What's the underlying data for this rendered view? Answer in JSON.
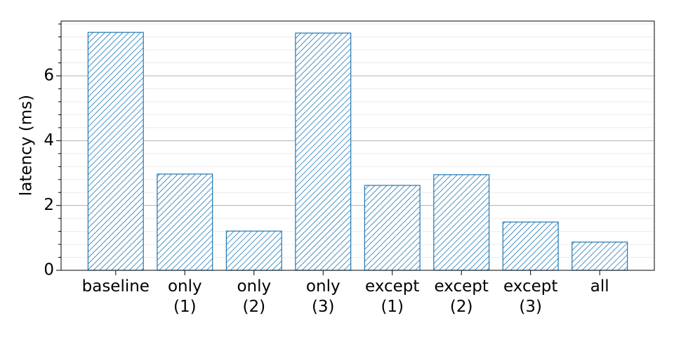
{
  "chart_data": {
    "type": "bar",
    "y_label": "latency (ms)",
    "categories": [
      "baseline",
      "only\n(1)",
      "only\n(2)",
      "only\n(3)",
      "except\n(1)",
      "except\n(2)",
      "except\n(3)",
      "all"
    ],
    "values": [
      7.34,
      2.97,
      1.21,
      7.32,
      2.62,
      2.95,
      1.49,
      0.87
    ],
    "color": "#1f77b4",
    "hatch": "////",
    "ylim": [
      0,
      7.69
    ],
    "yticks": [
      0,
      2,
      4,
      6
    ],
    "minor_yticks": [
      0.4,
      0.8,
      1.2,
      1.6,
      2.4,
      2.8,
      3.2,
      3.6,
      4.4,
      4.8,
      5.2,
      5.6,
      6.4,
      6.8,
      7.2,
      7.6
    ],
    "grid": true
  }
}
